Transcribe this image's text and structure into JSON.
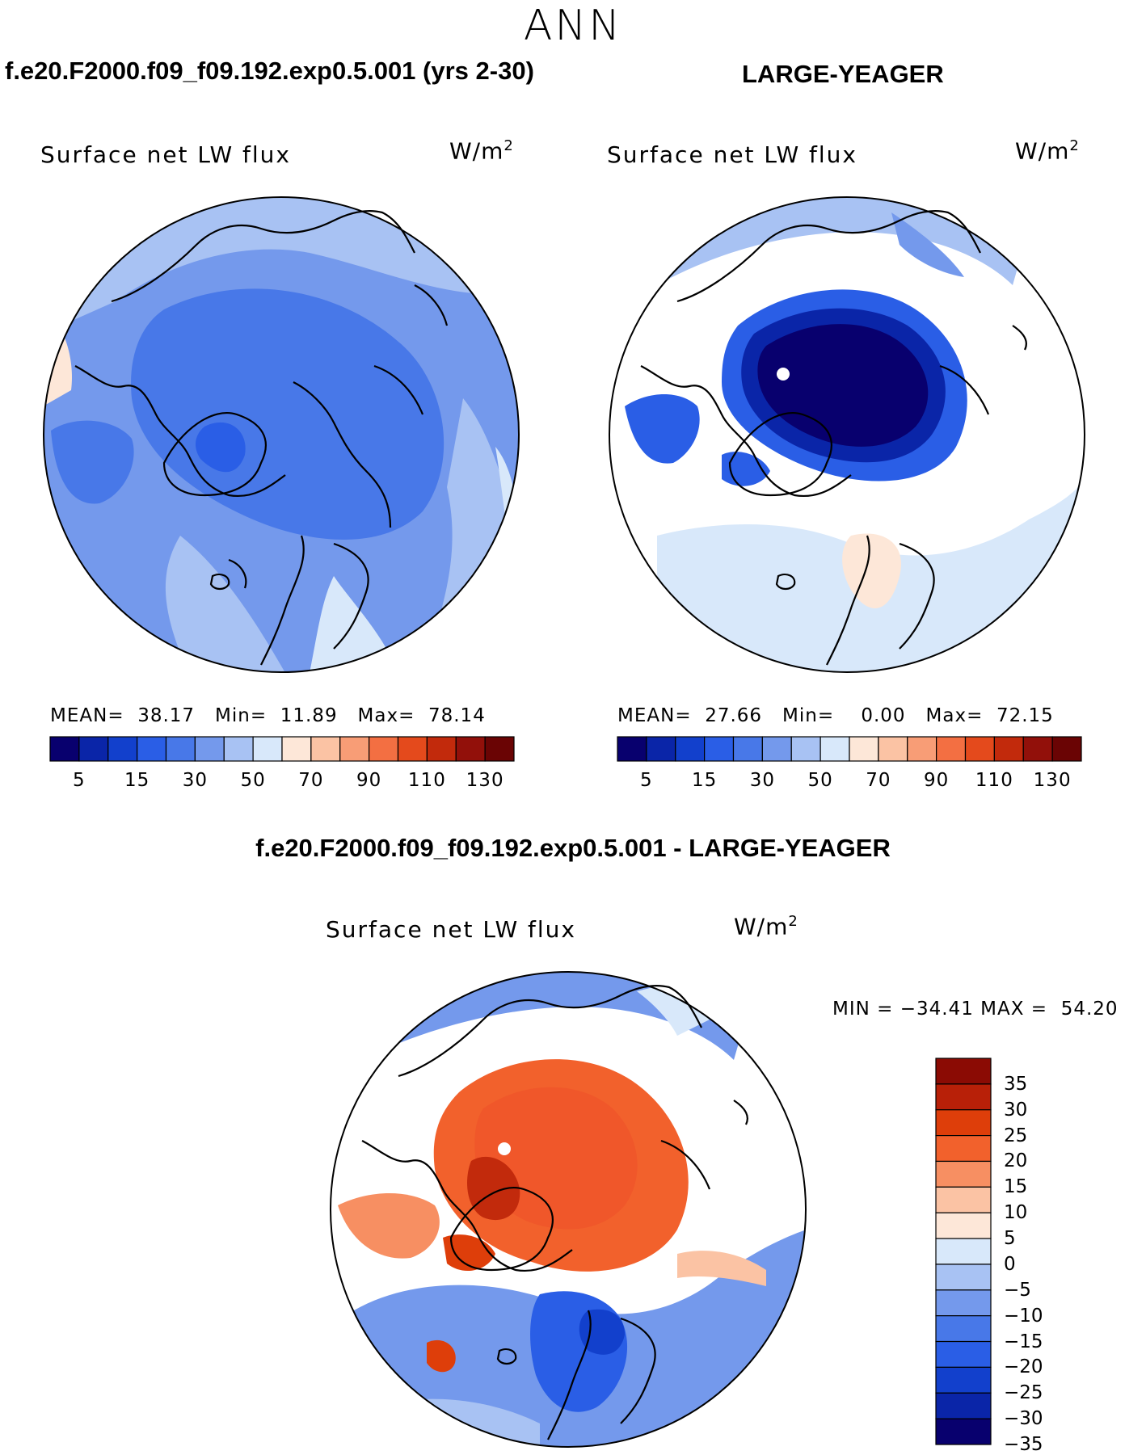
{
  "season": "ANN",
  "panel_test": {
    "case_title": "f.e20.F2000.f09_f09.192.exp0.5.001 (yrs 2-30)",
    "field": "Surface net LW flux",
    "units_base": "W/m",
    "units_exp": "2",
    "mean_label": "MEAN=",
    "mean_value": "38.17",
    "min_label": "Min=",
    "min_value": "11.89",
    "max_label": "Max=",
    "max_value": "78.14"
  },
  "panel_obs": {
    "case_title": "LARGE-YEAGER",
    "field": "Surface net LW flux",
    "units_base": "W/m",
    "units_exp": "2",
    "mean_label": "MEAN=",
    "mean_value": "27.66",
    "min_label": "Min=",
    "min_value": "0.00",
    "max_label": "Max=",
    "max_value": "72.15"
  },
  "panel_diff": {
    "case_title": "f.e20.F2000.f09_f09.192.exp0.5.001 - LARGE-YEAGER",
    "field": "Surface net LW flux",
    "units_base": "W/m",
    "units_exp": "2",
    "minmax_text": "MIN = −34.41 MAX =  54.20"
  },
  "abs_colorbar": {
    "colors": [
      "#08006e",
      "#0a25a8",
      "#1240cc",
      "#2a5ee6",
      "#4878e8",
      "#7499ec",
      "#a8c2f3",
      "#d8e8fa",
      "#fde7d8",
      "#fbc3a4",
      "#f89d76",
      "#f36f42",
      "#e44a1c",
      "#c22a0c",
      "#92100a",
      "#6a0404"
    ],
    "tick_labels": [
      "5",
      "15",
      "30",
      "50",
      "70",
      "90",
      "110",
      "130"
    ]
  },
  "diff_colorbar": {
    "colors": [
      "#8b0b04",
      "#b82008",
      "#de3e0a",
      "#f2612c",
      "#f78f62",
      "#fbc3a4",
      "#fde7d8",
      "#d8e8fa",
      "#a8c2f3",
      "#7499ec",
      "#4878e8",
      "#2a5ee6",
      "#1240cc",
      "#0a25a8",
      "#08006e"
    ],
    "tick_labels": [
      "35",
      "30",
      "25",
      "20",
      "15",
      "10",
      "5",
      "0",
      "−5",
      "−10",
      "−15",
      "−20",
      "−25",
      "−30",
      "−35"
    ]
  },
  "map_colors": {
    "missing": "#ffffff",
    "coast": "#000000",
    "pole_marker": "#ffffff"
  }
}
